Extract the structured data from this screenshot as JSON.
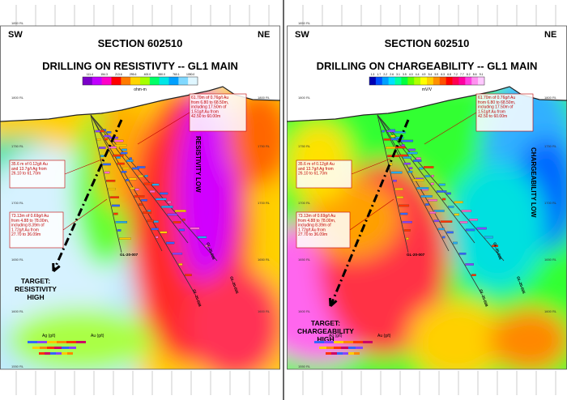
{
  "panels": [
    {
      "id": "resistivity",
      "dir_left": "SW",
      "dir_right": "NE",
      "section_title": "SECTION 602510",
      "main_title": "DRILLING ON RESISTIVTY -- GL1 MAIN",
      "scale_unit": "ohm-m",
      "scale_ticks": [
        "111.4",
        "154.3",
        "213.6",
        "295.6",
        "400.0",
        "550.0",
        "760.1",
        "1050.0"
      ],
      "scale_colors": [
        "#7a00c8",
        "#c000ff",
        "#ff00c8",
        "#ff0000",
        "#ff7a00",
        "#ffd400",
        "#a6ff00",
        "#00ff66",
        "#00e6e6",
        "#00a0ff",
        "#80d8ff",
        "#dff6ff"
      ],
      "anomaly_label": "RESISTIVITY LOW",
      "target_label_1": "TARGET:",
      "target_label_2": "RESISTIVITY",
      "target_label_3": "HIGH",
      "callouts": [
        "61.70m of 0.76g/t Au from 6.80 to 68.50m, including 17.50m of 1.51g/t Au from 42.50 to 60.00m",
        "35.6 m of 0.12g/t Au and 13.7g/t Ag from 26.10 to 61.70m",
        "73.13m of 0.69g/t Au from 4.88 to 78.00m, including 8.39m of 1.72g/t Au from 27.70 to 36.09m"
      ],
      "hole_labels": [
        "GL-20-007",
        "GL-20-006",
        "GL-20-008",
        "GL-20-005"
      ],
      "legend_ag": "Ag (g/t)",
      "legend_au": "Au (g/t)"
    },
    {
      "id": "chargeability",
      "dir_left": "SW",
      "dir_right": "NE",
      "section_title": "SECTION 602510",
      "main_title": "DRILLING ON CHARGEABILITY -- GL1 MAIN",
      "scale_unit": "mV/V",
      "scale_ticks": [
        "1.3",
        "1.7",
        "2.2",
        "2.6",
        "3.1",
        "3.5",
        "4.0",
        "4.4",
        "4.9",
        "5.4",
        "5.9",
        "6.3",
        "6.8",
        "7.2",
        "7.7",
        "8.2",
        "8.6",
        "9.1"
      ],
      "scale_colors": [
        "#0000b4",
        "#0050ff",
        "#00a0ff",
        "#00e0ff",
        "#00ffa0",
        "#00ff40",
        "#60ff00",
        "#b0ff00",
        "#ffff00",
        "#ffd000",
        "#ff9000",
        "#ff5000",
        "#ff0000",
        "#ff0050",
        "#ff00a0",
        "#ff40e0",
        "#ff90f0",
        "#ffc8ff"
      ],
      "anomaly_label": "CHARGEABILITY LOW",
      "target_label_1": "TARGET:",
      "target_label_2": "CHARGEABILITY",
      "target_label_3": "HIGH",
      "callouts": [
        "61.70m of 0.76g/t Au from 6.80 to 68.50m, including 17.50m of 1.51g/t Au from 42.50 to 60.00m",
        "35.6 m of 0.12g/t Au and 13.7g/t Ag from 26.10 to 61.70m",
        "73.13m of 0.69g/t Au from 4.88 to 78.00m, including 8.39m of 1.72g/t Au from 27.70 to 36.09m"
      ],
      "hole_labels": [
        "GL-20-007",
        "GL-20-006",
        "GL-20-008",
        "GL-20-005"
      ],
      "legend_ag": "Ag (g/t)",
      "legend_au": "Au (g/t)"
    }
  ],
  "elevation_labels_left": [
    "1850 RL",
    "1800 RL",
    "1750 RL",
    "1700 RL",
    "1650 RL",
    "1600 RL",
    "1550 RL"
  ],
  "elevation_labels_right": [
    "1800 RL",
    "1750 RL",
    "1700 RL",
    "1650 RL",
    "1600 RL"
  ]
}
